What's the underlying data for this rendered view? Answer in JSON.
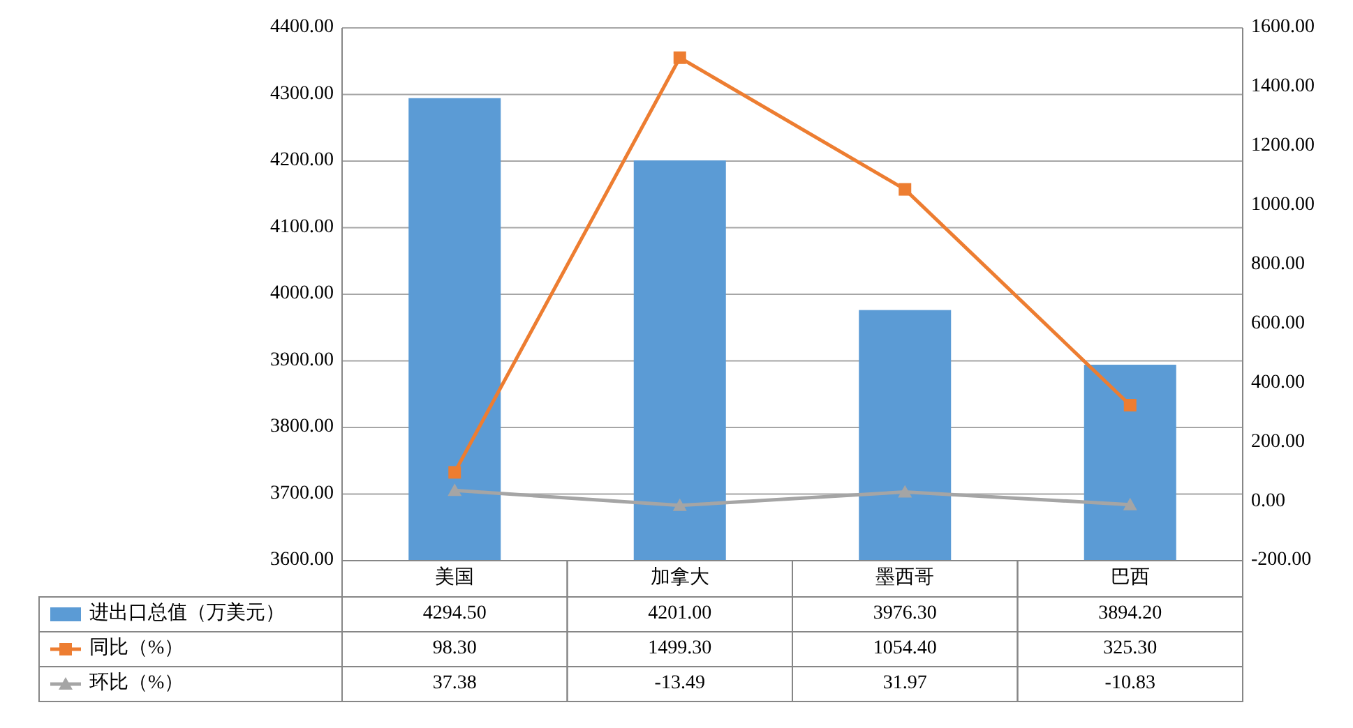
{
  "chart_data": {
    "type": "bar",
    "categories": [
      "美国",
      "加拿大",
      "墨西哥",
      "巴西"
    ],
    "series": [
      {
        "name": "进出口总值（万美元）",
        "color": "#5b9bd5",
        "values": [
          4294.5,
          4201,
          3976.3,
          3894.2
        ],
        "value_labels": [
          "4294.50",
          "4201.00",
          "3976.30",
          "3894.20"
        ]
      },
      {
        "name": "同比（%）",
        "type": "line",
        "axis": "y2",
        "color": "#ed7d31",
        "marker": "square",
        "values": [
          98.3,
          1499.3,
          1054.4,
          325.3
        ],
        "value_labels": [
          "98.30",
          "1499.30",
          "1054.40",
          "325.30"
        ]
      },
      {
        "name": "环比（%）",
        "type": "line",
        "axis": "y2",
        "color": "#a5a5a5",
        "marker": "triangle",
        "values": [
          37.38,
          -13.49,
          31.97,
          -10.83
        ],
        "value_labels": [
          "37.38",
          "-13.49",
          "31.97",
          "-10.83"
        ]
      }
    ],
    "ylim": [
      3600,
      4400
    ],
    "yticks": [
      {
        "value": 3600,
        "label": "3600.00"
      },
      {
        "value": 3700,
        "label": "3700.00"
      },
      {
        "value": 3800,
        "label": "3800.00"
      },
      {
        "value": 3900,
        "label": "3900.00"
      },
      {
        "value": 4000,
        "label": "4000.00"
      },
      {
        "value": 4100,
        "label": "4100.00"
      },
      {
        "value": 4200,
        "label": "4200.00"
      },
      {
        "value": 4300,
        "label": "4300.00"
      },
      {
        "value": 4400,
        "label": "4400.00"
      }
    ],
    "y2lim": [
      -200,
      1600
    ],
    "y2ticks": [
      {
        "value": -200,
        "label": "-200.00"
      },
      {
        "value": 0,
        "label": "0.00"
      },
      {
        "value": 200,
        "label": "200.00"
      },
      {
        "value": 400,
        "label": "400.00"
      },
      {
        "value": 600,
        "label": "600.00"
      },
      {
        "value": 800,
        "label": "800.00"
      },
      {
        "value": 1000,
        "label": "1000.00"
      },
      {
        "value": 1200,
        "label": "1200.00"
      },
      {
        "value": 1400,
        "label": "1400.00"
      },
      {
        "value": 1600,
        "label": "1600.00"
      }
    ],
    "grid": "y",
    "legend": "bottom"
  }
}
